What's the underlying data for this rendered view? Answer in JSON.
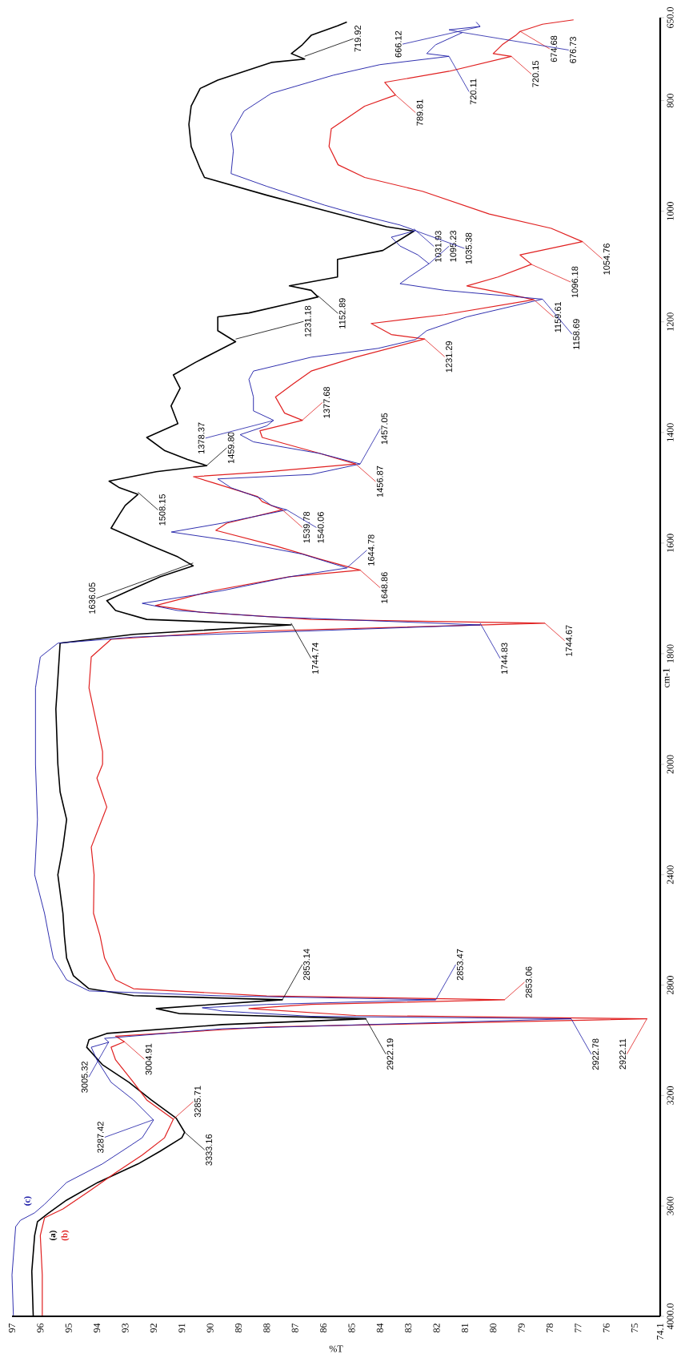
{
  "chart_data": [
    {
      "type": "line",
      "ylabel": "cm-1",
      "tick_labels": "y",
      "xlim": [
        97,
        74.1
      ],
      "ylim": [
        2000,
        650
      ],
      "yticks": [
        {
          "value": 650,
          "label": "650.0"
        },
        800,
        1000,
        1200,
        1400,
        1600,
        1800
      ],
      "series": [
        {
          "color": "#000000",
          "x": [
            95.38,
            95.45,
            95.4,
            95.3,
            92.7,
            87.14,
            92.24,
            93.34,
            93.65,
            92.87,
            91.77,
            90.6,
            91.14,
            92.08,
            93.5,
            93.2,
            93.0,
            92.55,
            93.2,
            93.57,
            91.9,
            90.12,
            90.8,
            91.6,
            92.24,
            91.14,
            91.38,
            91.06,
            91.3,
            90.51,
            89.9,
            89.1,
            89.73,
            89.73,
            88.63,
            87.2,
            86.19,
            86.43,
            87.2,
            85.5,
            85.5,
            83.9,
            82.8,
            83.76,
            85.5,
            88.0,
            90.2,
            90.35,
            90.67,
            90.75,
            90.67,
            90.35,
            89.73,
            87.84,
            86.66,
            87.13,
            86.74,
            86.43,
            85.5,
            85.17
          ],
          "values": [
            2000,
            1900,
            1862,
            1781,
            1765,
            1748,
            1738,
            1722,
            1704,
            1686,
            1661,
            1641,
            1625,
            1605,
            1573,
            1548,
            1532,
            1512,
            1500,
            1488,
            1471,
            1460,
            1449,
            1433,
            1409,
            1384,
            1352,
            1320,
            1296,
            1273,
            1257,
            1236,
            1216,
            1191,
            1184,
            1167,
            1155,
            1143,
            1135,
            1119,
            1087,
            1071,
            1036,
            1028,
            1005,
            971,
            939,
            923,
            883,
            843,
            810,
            778,
            763,
            731,
            725,
            715,
            699,
            682,
            665,
            658
          ]
        },
        {
          "color": "#e02020",
          "x": [
            93.8,
            93.8,
            94.28,
            94.2,
            93.5,
            89.57,
            78.18,
            86.43,
            90.35,
            91.93,
            89.89,
            87.2,
            84.7,
            86.12,
            87.69,
            89.8,
            89.41,
            87.45,
            88.16,
            88.32,
            89.89,
            90.59,
            88.0,
            84.86,
            86.12,
            88.16,
            88.24,
            86.74,
            87.37,
            87.69,
            87.06,
            86.43,
            84.86,
            82.42,
            83.6,
            84.31,
            81.72,
            78.57,
            79.36,
            80.93,
            79.83,
            78.65,
            79.05,
            76.85,
            77.95,
            80.14,
            82.5,
            84.54,
            85.48,
            85.8,
            85.72,
            84.54,
            83.45,
            83.83,
            81.56,
            79.36,
            80.0,
            79.68,
            79.2,
            79.05,
            78.26,
            77.16
          ],
          "values": [
            2000,
            1977,
            1862,
            1806,
            1774,
            1761,
            1745,
            1738,
            1725,
            1713,
            1686,
            1661,
            1649,
            1629,
            1605,
            1577,
            1564,
            1540,
            1525,
            1516,
            1491,
            1480,
            1471,
            1457,
            1438,
            1409,
            1397,
            1378,
            1365,
            1336,
            1312,
            1289,
            1264,
            1231,
            1223,
            1203,
            1187,
            1160,
            1151,
            1135,
            1119,
            1096,
            1079,
            1055,
            1031,
            1005,
            964,
            939,
            916,
            883,
            851,
            810,
            790,
            767,
            747,
            720,
            715,
            699,
            682,
            675,
            662,
            654
          ]
        },
        {
          "color": "#1a1aa6",
          "x": [
            96.17,
            96.17,
            96.0,
            95.38,
            92.71,
            80.46,
            88.0,
            91.14,
            92.4,
            89.57,
            87.2,
            85.17,
            86.74,
            89.1,
            91.37,
            89.57,
            87.29,
            87.84,
            88.16,
            89.26,
            89.73,
            86.43,
            84.7,
            86.12,
            88.47,
            88.94,
            88.0,
            87.76,
            88.47,
            88.47,
            88.63,
            88.47,
            86.43,
            84.07,
            82.74,
            82.35,
            80.93,
            78.26,
            81.72,
            83.29,
            82.97,
            82.27,
            82.66,
            83.29,
            83.6,
            82.74,
            83.29,
            84.86,
            85.96,
            88.0,
            89.26,
            89.18,
            89.26,
            88.8,
            87.84,
            85.64,
            84.0,
            81.56,
            82.35,
            82.03,
            81.09,
            81.56,
            80.46,
            80.6
          ],
          "values": [
            2000,
            1862,
            1806,
            1781,
            1770,
            1748,
            1733,
            1722,
            1709,
            1686,
            1661,
            1645,
            1620,
            1597,
            1580,
            1564,
            1540,
            1532,
            1520,
            1500,
            1484,
            1476,
            1457,
            1438,
            1417,
            1404,
            1388,
            1378,
            1361,
            1336,
            1304,
            1289,
            1264,
            1248,
            1232,
            1216,
            1191,
            1159,
            1143,
            1131,
            1119,
            1095,
            1079,
            1063,
            1047,
            1035,
            1025,
            1005,
            989,
            955,
            932,
            891,
            860,
            819,
            787,
            754,
            735,
            720,
            715,
            699,
            677,
            672,
            666,
            658
          ]
        }
      ],
      "annotations": [
        {
          "text": "1744.74",
          "x": 87.14,
          "y": 1744.74
        },
        {
          "text": "1636.05",
          "x": 90.6,
          "y": 1636.05
        },
        {
          "text": "1508.15",
          "x": 92.55,
          "y": 1508.15
        },
        {
          "text": "1459.80",
          "x": 90.12,
          "y": 1459.8
        },
        {
          "text": "1231.18",
          "x": 89.1,
          "y": 1231.18
        },
        {
          "text": "1152.89",
          "x": 86.19,
          "y": 1152.89
        },
        {
          "text": "1031.93",
          "x": 82.8,
          "y": 1031.93
        },
        {
          "text": "719.92",
          "x": 86.66,
          "y": 719.92
        },
        {
          "text": "1744.67",
          "x": 78.18,
          "y": 1744.67
        },
        {
          "text": "1648.86",
          "x": 84.7,
          "y": 1648.86
        },
        {
          "text": "1539.78",
          "x": 87.45,
          "y": 1539.78
        },
        {
          "text": "1456.87",
          "x": 84.86,
          "y": 1456.87
        },
        {
          "text": "1377.68",
          "x": 86.74,
          "y": 1377.68
        },
        {
          "text": "1231.29",
          "x": 82.42,
          "y": 1231.29
        },
        {
          "text": "1159.61",
          "x": 78.57,
          "y": 1159.61
        },
        {
          "text": "1096.18",
          "x": 78.65,
          "y": 1096.18
        },
        {
          "text": "1054.76",
          "x": 76.85,
          "y": 1054.76
        },
        {
          "text": "789.81",
          "x": 83.45,
          "y": 789.81
        },
        {
          "text": "720.15",
          "x": 79.36,
          "y": 720.15
        },
        {
          "text": "674.68",
          "x": 79.05,
          "y": 674.68
        },
        {
          "text": "1744.83",
          "x": 80.46,
          "y": 1744.83
        },
        {
          "text": "1644.78",
          "x": 85.17,
          "y": 1644.78
        },
        {
          "text": "1540.06",
          "x": 87.29,
          "y": 1540.06
        },
        {
          "text": "1457.05",
          "x": 84.7,
          "y": 1457.05
        },
        {
          "text": "1378.37",
          "x": 87.76,
          "y": 1378.37
        },
        {
          "text": "1158.69",
          "x": 78.26,
          "y": 1158.69
        },
        {
          "text": "1095.23",
          "x": 82.27,
          "y": 1095.23
        },
        {
          "text": "1035.38",
          "x": 82.74,
          "y": 1035.38
        },
        {
          "text": "720.11",
          "x": 81.56,
          "y": 720.11
        },
        {
          "text": "676.73",
          "x": 81.09,
          "y": 676.73
        },
        {
          "text": "666.12",
          "x": 80.46,
          "y": 666.12
        }
      ]
    },
    {
      "type": "line",
      "xlabel": "%T",
      "xlim": [
        97,
        74.1
      ],
      "ylim": [
        4000,
        2000
      ],
      "xticks": [
        97,
        96,
        95,
        94,
        93,
        92,
        91,
        90,
        89,
        88,
        87,
        86,
        85,
        84,
        83,
        82,
        81,
        80,
        79,
        78,
        77,
        76,
        75,
        74.1
      ],
      "yticks": [
        2000,
        2400,
        2800,
        3200,
        3600,
        {
          "value": 4000,
          "label": "4000.0"
        }
      ],
      "series": [
        {
          "name": "(a)",
          "color": "#000000",
          "x": [
            96.25,
            96.3,
            96.2,
            96.1,
            95.7,
            95.07,
            93.97,
            92.55,
            91.77,
            91.0,
            90.9,
            91.2,
            92.08,
            92.87,
            93.81,
            94.36,
            94.28,
            93.65,
            89.57,
            84.5,
            91.1,
            91.9,
            90.0,
            87.45,
            92.7,
            94.28,
            94.83,
            95.07,
            95.15,
            95.2,
            95.38,
            95.2,
            95.07,
            95.3,
            95.38
          ],
          "values": [
            3997,
            3837,
            3707,
            3657,
            3625,
            3579,
            3515,
            3448,
            3402,
            3353,
            3333,
            3282,
            3216,
            3152,
            3088,
            3025,
            2998,
            2975,
            2943,
            2922,
            2903,
            2885,
            2871,
            2853,
            2838,
            2813,
            2766,
            2702,
            2621,
            2540,
            2400,
            2300,
            2200,
            2100,
            2000
          ]
        },
        {
          "name": "(b)",
          "color": "#e02020",
          "x": [
            95.93,
            95.93,
            96.0,
            95.85,
            95.2,
            94.28,
            93.34,
            92.4,
            91.61,
            91.3,
            92.24,
            92.71,
            93.34,
            93.5,
            93.03,
            93.34,
            88.0,
            74.57,
            84.86,
            88.63,
            86.43,
            79.6,
            88.0,
            92.71,
            93.34,
            93.73,
            93.89,
            94.12,
            94.1,
            94.2,
            93.65,
            94.0,
            93.8
          ],
          "values": [
            3997,
            3850,
            3707,
            3643,
            3611,
            3547,
            3480,
            3416,
            3353,
            3286,
            3216,
            3152,
            3071,
            3025,
            3005,
            2985,
            2952,
            2922,
            2910,
            2885,
            2870,
            2853,
            2839,
            2813,
            2781,
            2702,
            2621,
            2540,
            2400,
            2300,
            2155,
            2050,
            2000
          ]
        },
        {
          "name": "(c)",
          "color": "#1a1aa6",
          "x": [
            96.95,
            97.0,
            96.87,
            96.7,
            96.2,
            95.85,
            95.07,
            93.81,
            92.87,
            92.4,
            92.0,
            92.71,
            93.5,
            94.0,
            94.2,
            93.58,
            93.73,
            89.57,
            77.24,
            86.43,
            89.57,
            90.28,
            88.0,
            82.03,
            89.57,
            94.28,
            95.07,
            95.54,
            95.7,
            95.85,
            96.2,
            96.1,
            96.17
          ],
          "values": [
            3997,
            3850,
            3675,
            3652,
            3625,
            3594,
            3515,
            3448,
            3385,
            3353,
            3289,
            3216,
            3152,
            3071,
            3025,
            3007,
            2993,
            2958,
            2922,
            2913,
            2894,
            2882,
            2870,
            2853,
            2839,
            2821,
            2781,
            2702,
            2621,
            2540,
            2400,
            2200,
            2000
          ]
        }
      ],
      "annotations": [
        {
          "text": "3333.16",
          "x": 90.9,
          "y": 3333.16
        },
        {
          "text": "2922.19",
          "x": 84.5,
          "y": 2922.19
        },
        {
          "text": "2853.14",
          "x": 87.45,
          "y": 2853.14
        },
        {
          "text": "3285.71",
          "x": 91.3,
          "y": 3285.71
        },
        {
          "text": "3004.91",
          "x": 93.03,
          "y": 3004.91
        },
        {
          "text": "2922.11",
          "x": 74.57,
          "y": 2922.11
        },
        {
          "text": "2853.06",
          "x": 79.6,
          "y": 2853.06
        },
        {
          "text": "3287.42",
          "x": 92.0,
          "y": 3287.42
        },
        {
          "text": "3005.32",
          "x": 93.58,
          "y": 3005.32
        },
        {
          "text": "2922.78",
          "x": 77.24,
          "y": 2922.78
        },
        {
          "text": "2853.47",
          "x": 82.03,
          "y": 2853.47
        }
      ]
    }
  ]
}
